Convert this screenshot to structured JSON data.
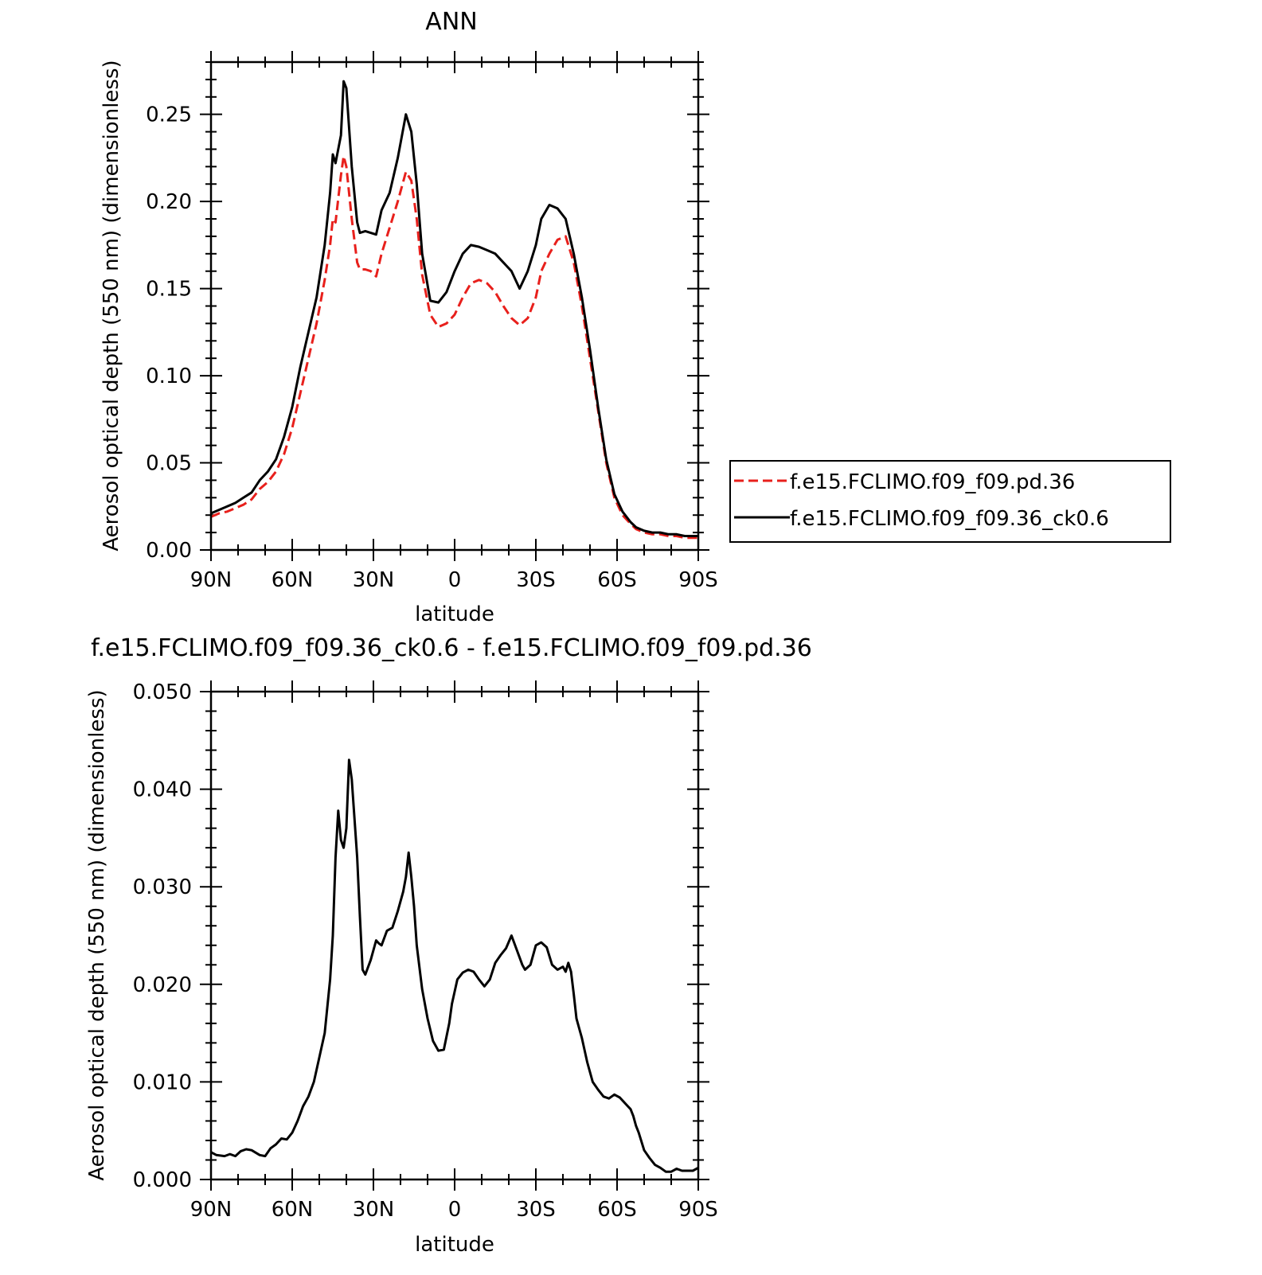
{
  "colors": {
    "series_control": "#e8201c",
    "series_test": "#000000",
    "axis": "#000000"
  },
  "chart_data": [
    {
      "type": "line",
      "title": "ANN",
      "xlabel": "latitude",
      "ylabel": "Aerosol optical depth (550 nm) (dimensionless)",
      "x_ticks": [
        "90N",
        "60N",
        "30N",
        "0",
        "30S",
        "60S",
        "90S"
      ],
      "x_tick_values": [
        90,
        60,
        30,
        0,
        -30,
        -60,
        -90
      ],
      "xlim": [
        90,
        -90
      ],
      "ylim": [
        0,
        0.28
      ],
      "y_ticks": [
        "0.00",
        "0.05",
        "0.10",
        "0.15",
        "0.20",
        "0.25"
      ],
      "y_tick_values": [
        0,
        0.05,
        0.1,
        0.15,
        0.2,
        0.25
      ],
      "grid": false,
      "legend_position": "right",
      "series": [
        {
          "name": "f.e15.FCLIMO.f09_f09.pd.36",
          "style": "dashed",
          "x": [
            90,
            87,
            84,
            81,
            78,
            75,
            72,
            69,
            66,
            63,
            60,
            57,
            54,
            51,
            48,
            46,
            45,
            44,
            42,
            41,
            40,
            38,
            36,
            35,
            33,
            31,
            29,
            27,
            24,
            21,
            18,
            16,
            14,
            12,
            9,
            6,
            3,
            0,
            -3,
            -6,
            -9,
            -12,
            -15,
            -18,
            -21,
            -24,
            -27,
            -30,
            -32,
            -35,
            -38,
            -41,
            -44,
            -47,
            -50,
            -53,
            -56,
            -59,
            -62,
            -65,
            -67,
            -70,
            -73,
            -76,
            -79,
            -82,
            -85,
            -88,
            -90
          ],
          "values": [
            0.019,
            0.021,
            0.022,
            0.024,
            0.026,
            0.029,
            0.035,
            0.039,
            0.045,
            0.055,
            0.07,
            0.09,
            0.11,
            0.13,
            0.155,
            0.175,
            0.19,
            0.188,
            0.215,
            0.226,
            0.22,
            0.19,
            0.165,
            0.161,
            0.161,
            0.16,
            0.157,
            0.17,
            0.185,
            0.2,
            0.217,
            0.212,
            0.19,
            0.158,
            0.135,
            0.128,
            0.13,
            0.135,
            0.145,
            0.153,
            0.155,
            0.153,
            0.148,
            0.14,
            0.133,
            0.129,
            0.133,
            0.145,
            0.16,
            0.17,
            0.178,
            0.18,
            0.165,
            0.14,
            0.11,
            0.08,
            0.05,
            0.03,
            0.02,
            0.015,
            0.012,
            0.01,
            0.009,
            0.009,
            0.008,
            0.008,
            0.007,
            0.007,
            0.007
          ]
        },
        {
          "name": "f.e15.FCLIMO.f09_f09.36_ck0.6",
          "style": "solid",
          "x": [
            90,
            87,
            84,
            81,
            78,
            75,
            72,
            69,
            66,
            63,
            60,
            57,
            54,
            51,
            48,
            46,
            45,
            44,
            42,
            41,
            40,
            38,
            36,
            35,
            33,
            31,
            29,
            27,
            24,
            21,
            18,
            16,
            14,
            12,
            9,
            6,
            3,
            0,
            -3,
            -6,
            -9,
            -12,
            -15,
            -18,
            -21,
            -24,
            -27,
            -30,
            -32,
            -35,
            -38,
            -41,
            -44,
            -47,
            -50,
            -53,
            -56,
            -59,
            -62,
            -65,
            -67,
            -70,
            -73,
            -76,
            -79,
            -82,
            -85,
            -88,
            -90
          ],
          "values": [
            0.021,
            0.023,
            0.025,
            0.027,
            0.03,
            0.033,
            0.04,
            0.045,
            0.052,
            0.065,
            0.082,
            0.105,
            0.125,
            0.145,
            0.175,
            0.205,
            0.227,
            0.222,
            0.238,
            0.269,
            0.265,
            0.22,
            0.188,
            0.182,
            0.183,
            0.182,
            0.181,
            0.195,
            0.205,
            0.225,
            0.25,
            0.24,
            0.21,
            0.17,
            0.143,
            0.142,
            0.148,
            0.16,
            0.17,
            0.175,
            0.174,
            0.172,
            0.17,
            0.165,
            0.16,
            0.15,
            0.16,
            0.175,
            0.19,
            0.198,
            0.196,
            0.19,
            0.17,
            0.145,
            0.115,
            0.082,
            0.052,
            0.032,
            0.022,
            0.016,
            0.013,
            0.011,
            0.01,
            0.01,
            0.009,
            0.009,
            0.008,
            0.008,
            0.008
          ]
        }
      ]
    },
    {
      "type": "line",
      "title": "f.e15.FCLIMO.f09_f09.36_ck0.6 - f.e15.FCLIMO.f09_f09.pd.36",
      "xlabel": "latitude",
      "ylabel": "Aerosol optical depth (550 nm) (dimensionless)",
      "x_ticks": [
        "90N",
        "60N",
        "30N",
        "0",
        "30S",
        "60S",
        "90S"
      ],
      "x_tick_values": [
        90,
        60,
        30,
        0,
        -30,
        -60,
        -90
      ],
      "xlim": [
        90,
        -90
      ],
      "ylim": [
        0,
        0.05
      ],
      "y_ticks": [
        "0.000",
        "0.010",
        "0.020",
        "0.030",
        "0.040",
        "0.050"
      ],
      "y_tick_values": [
        0,
        0.01,
        0.02,
        0.03,
        0.04,
        0.05
      ],
      "grid": false,
      "series": [
        {
          "style": "solid",
          "x": [
            90,
            88,
            85,
            83,
            81,
            79,
            77,
            75,
            72,
            70,
            68,
            66,
            64,
            62,
            60,
            58,
            56,
            54,
            52,
            50,
            48,
            46,
            45,
            44,
            43,
            42,
            41,
            40,
            39,
            38,
            36,
            35,
            34,
            33,
            31,
            29,
            28,
            27,
            25,
            23,
            21,
            19,
            18,
            17,
            16,
            15,
            14,
            12,
            10,
            8,
            6,
            4,
            2,
            1,
            -1,
            -3,
            -5,
            -7,
            -9,
            -11,
            -13,
            -15,
            -17,
            -19,
            -21,
            -23,
            -25,
            -26,
            -28,
            -30,
            -32,
            -34,
            -36,
            -38,
            -40,
            -41,
            -42,
            -43,
            -44,
            -45,
            -46,
            -47,
            -49,
            -51,
            -53,
            -55,
            -57,
            -59,
            -61,
            -63,
            -65,
            -66,
            -67,
            -68,
            -70,
            -72,
            -74,
            -76,
            -78,
            -80,
            -82,
            -84,
            -86,
            -88,
            -90
          ],
          "values": [
            0.0028,
            0.0025,
            0.0024,
            0.0026,
            0.0024,
            0.0029,
            0.0031,
            0.003,
            0.0025,
            0.0024,
            0.0032,
            0.0036,
            0.0042,
            0.0041,
            0.0048,
            0.006,
            0.0075,
            0.0085,
            0.01,
            0.0125,
            0.015,
            0.0205,
            0.025,
            0.033,
            0.0378,
            0.0348,
            0.034,
            0.036,
            0.043,
            0.041,
            0.033,
            0.027,
            0.0215,
            0.021,
            0.0225,
            0.0245,
            0.0242,
            0.024,
            0.0255,
            0.0258,
            0.0275,
            0.0295,
            0.031,
            0.0335,
            0.031,
            0.028,
            0.024,
            0.0195,
            0.0165,
            0.0142,
            0.0132,
            0.0133,
            0.016,
            0.018,
            0.0205,
            0.0212,
            0.0215,
            0.0213,
            0.0205,
            0.0198,
            0.0205,
            0.0222,
            0.023,
            0.0237,
            0.025,
            0.0235,
            0.022,
            0.0215,
            0.022,
            0.024,
            0.0243,
            0.0238,
            0.022,
            0.0215,
            0.0218,
            0.0213,
            0.0222,
            0.0213,
            0.019,
            0.0165,
            0.0155,
            0.0145,
            0.012,
            0.01,
            0.0092,
            0.0085,
            0.0083,
            0.0087,
            0.0084,
            0.0078,
            0.0072,
            0.0065,
            0.0055,
            0.0048,
            0.003,
            0.0022,
            0.0015,
            0.0012,
            0.0008,
            0.0008,
            0.0011,
            0.0009,
            0.0009,
            0.0009,
            0.0012
          ]
        }
      ]
    }
  ]
}
